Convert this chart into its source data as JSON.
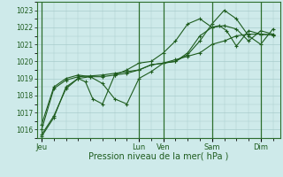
{
  "bg_color": "#ceeaea",
  "grid_color": "#a8cccc",
  "line_color": "#1e5c1e",
  "dark_line_color": "#2d6e2d",
  "xlabel": "Pression niveau de la mer( hPa )",
  "ylim": [
    1015.5,
    1023.5
  ],
  "yticks": [
    1016,
    1017,
    1018,
    1019,
    1020,
    1021,
    1022,
    1023
  ],
  "x_day_labels": [
    "Jeu",
    "Lun",
    "Ven",
    "Sam",
    "Dim"
  ],
  "x_day_positions": [
    0.0,
    4.0,
    5.0,
    7.0,
    9.0
  ],
  "xlim": [
    -0.2,
    9.8
  ],
  "series1_x": [
    0,
    0.5,
    1.0,
    1.5,
    2.0,
    2.5,
    3.0,
    3.5,
    4.0,
    4.5,
    5.0,
    5.5,
    6.0,
    6.5,
    7.0,
    7.5,
    8.0,
    8.5,
    9.0,
    9.5
  ],
  "series1_y": [
    1016.0,
    1018.4,
    1018.9,
    1019.1,
    1019.15,
    1019.2,
    1019.3,
    1019.4,
    1019.5,
    1019.8,
    1019.9,
    1020.1,
    1020.3,
    1020.5,
    1021.0,
    1021.2,
    1021.5,
    1021.6,
    1021.6,
    1021.55
  ],
  "series2_x": [
    0,
    0.5,
    1.0,
    1.5,
    2.0,
    2.5,
    3.0,
    3.5,
    4.0,
    4.5,
    5.0,
    5.5,
    6.0,
    6.5,
    7.0,
    7.5,
    8.0,
    8.5,
    9.0,
    9.5
  ],
  "series2_y": [
    1016.3,
    1018.5,
    1019.0,
    1019.2,
    1019.1,
    1018.7,
    1017.8,
    1017.5,
    1019.0,
    1019.4,
    1019.9,
    1020.0,
    1020.5,
    1021.5,
    1022.0,
    1022.1,
    1021.9,
    1021.2,
    1021.8,
    1021.6
  ],
  "series3_x": [
    0,
    0.5,
    1.0,
    1.5,
    2.0,
    2.5,
    3.0,
    3.5,
    4.0,
    4.5,
    5.0,
    5.5,
    6.0,
    6.5,
    7.0,
    7.5,
    8.0,
    8.5,
    9.0,
    9.5
  ],
  "series3_y": [
    1015.7,
    1016.8,
    1018.4,
    1019.0,
    1019.1,
    1019.1,
    1019.2,
    1019.3,
    1019.5,
    1019.8,
    1019.9,
    1020.0,
    1020.4,
    1021.2,
    1022.2,
    1023.0,
    1022.5,
    1021.5,
    1021.0,
    1021.9
  ],
  "series4_x": [
    0,
    0.5,
    1.0,
    1.5,
    1.8,
    2.1,
    2.5,
    3.0,
    3.5,
    4.0,
    4.5,
    5.0,
    5.5,
    6.0,
    6.5,
    7.0,
    7.3,
    7.6,
    8.0,
    8.5,
    9.0,
    9.5
  ],
  "series4_y": [
    1015.6,
    1016.7,
    1018.5,
    1019.0,
    1018.8,
    1017.8,
    1017.5,
    1019.2,
    1019.5,
    1019.9,
    1020.0,
    1020.5,
    1021.2,
    1022.2,
    1022.5,
    1022.0,
    1022.1,
    1021.8,
    1020.9,
    1021.8,
    1021.6,
    1021.55
  ]
}
